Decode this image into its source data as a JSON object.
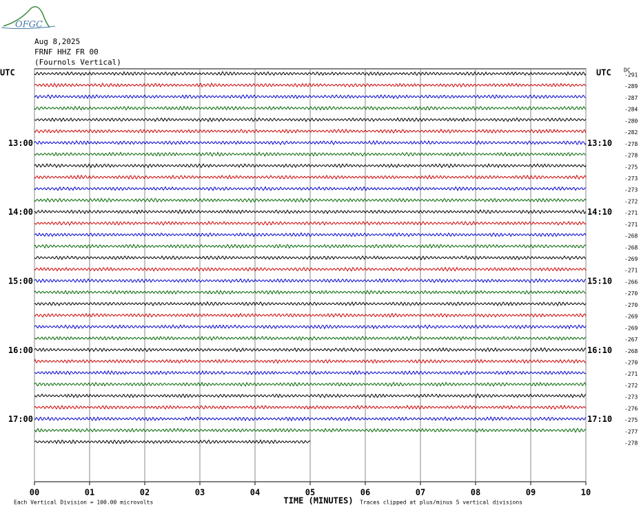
{
  "chart_data": {
    "type": "helicorder",
    "logo": "OFGC",
    "title_lines": [
      "Aug 8,2025",
      "FRNF HHZ FR 00",
      "(Fournols Vertical)"
    ],
    "left_header": "UTC",
    "right_header": "UTC",
    "dc_header": "DC",
    "xlabel": "TIME (MINUTES)",
    "footnote_left": "Each Vertical Division =  100.00 microvolts",
    "footnote_right": "Traces clipped at plus/minus 5 vertical divisions",
    "xlim": [
      0,
      10
    ],
    "xticks": [
      {
        "value": 0,
        "label": "00"
      },
      {
        "value": 1,
        "label": "01"
      },
      {
        "value": 2,
        "label": "02"
      },
      {
        "value": 3,
        "label": "03"
      },
      {
        "value": 4,
        "label": "04"
      },
      {
        "value": 5,
        "label": "05"
      },
      {
        "value": 6,
        "label": "06"
      },
      {
        "value": 7,
        "label": "07"
      },
      {
        "value": 8,
        "label": "08"
      },
      {
        "value": 9,
        "label": "09"
      },
      {
        "value": 10,
        "label": "10"
      }
    ],
    "colors": [
      "#000000",
      "#cc0000",
      "#0000cc",
      "#006600"
    ],
    "left_labels": [
      null,
      null,
      null,
      null,
      null,
      null,
      "13:00",
      null,
      null,
      null,
      null,
      null,
      "14:00",
      null,
      null,
      null,
      null,
      null,
      "15:00",
      null,
      null,
      null,
      null,
      null,
      "16:00",
      null,
      null,
      null,
      null,
      null,
      "17:00",
      null,
      null
    ],
    "right_labels": [
      null,
      null,
      null,
      null,
      null,
      null,
      "13:10",
      null,
      null,
      null,
      null,
      null,
      "14:10",
      null,
      null,
      null,
      null,
      null,
      "15:10",
      null,
      null,
      null,
      null,
      null,
      "16:10",
      null,
      null,
      null,
      null,
      null,
      "17:10",
      null,
      null
    ],
    "dc_offsets": [
      -291,
      -289,
      -287,
      -284,
      -280,
      -282,
      -278,
      -278,
      -275,
      -273,
      -273,
      -272,
      -271,
      -271,
      -268,
      -268,
      -269,
      -271,
      -266,
      -270,
      -270,
      -269,
      -269,
      -267,
      -268,
      -270,
      -271,
      -272,
      -273,
      -276,
      -275,
      -277,
      -278
    ],
    "last_trace_end": 5
  }
}
